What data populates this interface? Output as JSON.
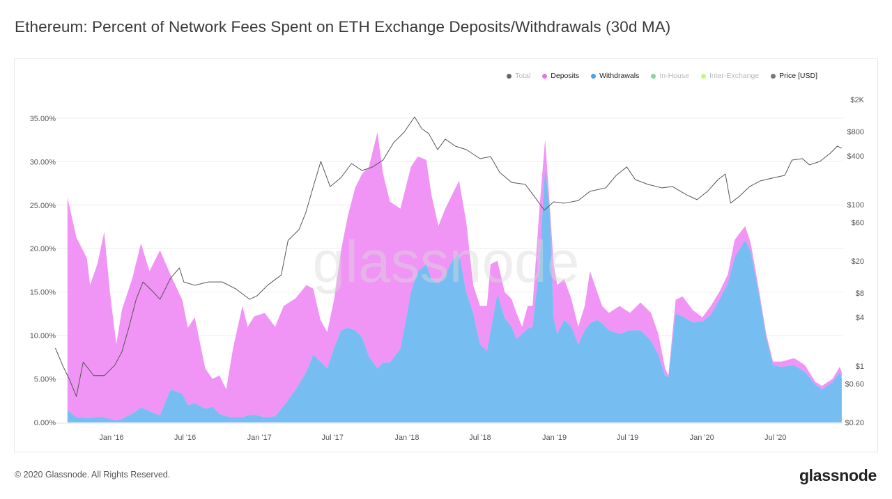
{
  "title": "Ethereum: Percent of Network Fees Spent on ETH Exchange Deposits/Withdrawals (30d MA)",
  "footer": "© 2020 Glassnode. All Rights Reserved.",
  "logo": "glassnode",
  "watermark": "glassnode",
  "legend": [
    {
      "label": "Total",
      "color": "#333333",
      "active": false
    },
    {
      "label": "Deposits",
      "color": "#e673e6",
      "active": true
    },
    {
      "label": "Withdrawals",
      "color": "#4aa3e8",
      "active": true
    },
    {
      "label": "In-House",
      "color": "#5ec97a",
      "active": false
    },
    {
      "label": "Inter-Exchange",
      "color": "#b4ef5a",
      "active": false
    },
    {
      "label": "Price [USD]",
      "color": "#777777",
      "active": true
    }
  ],
  "chart_data": {
    "type": "area",
    "stacked": true,
    "title": "Ethereum: Percent of Network Fees Spent on ETH Exchange Deposits/Withdrawals (30d MA)",
    "x_ticks": [
      "Jan '16",
      "Jul '16",
      "Jan '17",
      "Jul '17",
      "Jan '18",
      "Jul '18",
      "Jan '19",
      "Jul '19",
      "Jan '20",
      "Jul '20"
    ],
    "x_tick_dates": [
      "2016-01-01",
      "2016-07-01",
      "2017-01-01",
      "2017-07-01",
      "2018-01-01",
      "2018-07-01",
      "2019-01-01",
      "2019-07-01",
      "2020-01-01",
      "2020-07-01"
    ],
    "y_left": {
      "ticks": [
        "0.00%",
        "5.00%",
        "10.00%",
        "15.00%",
        "20.00%",
        "25.00%",
        "30.00%",
        "35.00%"
      ],
      "tick_values": [
        0,
        5,
        10,
        15,
        20,
        25,
        30,
        35
      ],
      "range": [
        0,
        35
      ]
    },
    "y_right": {
      "scale": "log",
      "ticks": [
        "$0.20",
        "$0.60",
        "$1",
        "$4",
        "$8",
        "$20",
        "$60",
        "$100",
        "$400",
        "$800",
        "$2K"
      ],
      "tick_values": [
        0.2,
        0.6,
        1,
        4,
        8,
        20,
        60,
        100,
        400,
        800,
        2000
      ],
      "range": [
        0.2,
        2000
      ]
    },
    "grid": true,
    "legend_position": "top-right",
    "colors": {
      "deposits": "#f094f5",
      "withdrawals": "#76bdf2",
      "price": "#555555"
    },
    "dates": [
      "2015-09-14",
      "2015-10-06",
      "2015-11-01",
      "2015-11-09",
      "2015-11-27",
      "2015-12-14",
      "2015-12-28",
      "2016-01-13",
      "2016-01-27",
      "2016-02-21",
      "2016-03-14",
      "2016-04-04",
      "2016-04-30",
      "2016-05-26",
      "2016-06-24",
      "2016-07-08",
      "2016-07-25",
      "2016-08-20",
      "2016-09-07",
      "2016-09-24",
      "2016-10-11",
      "2016-10-28",
      "2016-11-20",
      "2016-12-03",
      "2016-12-19",
      "2017-01-14",
      "2017-02-09",
      "2017-03-02",
      "2017-04-01",
      "2017-04-27",
      "2017-05-14",
      "2017-06-01",
      "2017-06-18",
      "2017-07-05",
      "2017-07-22",
      "2017-08-08",
      "2017-08-26",
      "2017-09-12",
      "2017-09-29",
      "2017-10-20",
      "2017-11-03",
      "2017-11-20",
      "2017-12-16",
      "2018-01-11",
      "2018-01-28",
      "2018-02-18",
      "2018-03-03",
      "2018-03-20",
      "2018-04-06",
      "2018-04-23",
      "2018-05-10",
      "2018-05-28",
      "2018-06-14",
      "2018-07-01",
      "2018-07-18",
      "2018-07-27",
      "2018-08-13",
      "2018-08-31",
      "2018-09-17",
      "2018-09-29",
      "2018-10-13",
      "2018-10-27",
      "2018-11-08",
      "2018-11-25",
      "2018-12-09",
      "2018-12-21",
      "2018-12-30",
      "2019-01-08",
      "2019-01-25",
      "2019-02-12",
      "2019-03-01",
      "2019-03-17",
      "2019-03-30",
      "2019-04-17",
      "2019-04-29",
      "2019-05-16",
      "2019-06-11",
      "2019-07-07",
      "2019-08-02",
      "2019-08-28",
      "2019-09-15",
      "2019-10-02",
      "2019-10-10",
      "2019-10-28",
      "2019-11-14",
      "2019-12-10",
      "2020-01-02",
      "2020-01-23",
      "2020-02-13",
      "2020-03-05",
      "2020-03-22",
      "2020-04-17",
      "2020-05-01",
      "2020-05-22",
      "2020-06-08",
      "2020-06-25",
      "2020-07-16",
      "2020-08-16",
      "2020-09-12",
      "2020-10-07",
      "2020-10-24",
      "2020-11-19",
      "2020-12-07",
      "2020-12-12"
    ],
    "series": [
      {
        "name": "Withdrawals",
        "values": [
          1.4,
          0.6,
          0.5,
          0.5,
          0.6,
          0.6,
          0.4,
          0.2,
          0.4,
          1.0,
          1.7,
          1.3,
          0.8,
          3.8,
          3.3,
          2.0,
          2.2,
          1.6,
          1.8,
          1.0,
          0.7,
          0.6,
          0.6,
          0.8,
          0.9,
          0.6,
          0.7,
          1.9,
          3.8,
          5.8,
          7.8,
          7.0,
          6.2,
          8.6,
          10.6,
          10.9,
          10.6,
          9.8,
          7.6,
          6.2,
          6.9,
          6.9,
          8.5,
          15.0,
          17.4,
          18.2,
          16.5,
          16.0,
          17.0,
          18.6,
          19.4,
          15.0,
          12.6,
          9.0,
          8.2,
          10.5,
          14.8,
          12.0,
          11.0,
          9.6,
          10.2,
          10.8,
          11.0,
          18.2,
          29.4,
          24.0,
          12.0,
          10.2,
          11.8,
          11.0,
          9.0,
          10.6,
          11.4,
          11.8,
          11.4,
          10.6,
          10.2,
          10.6,
          10.6,
          9.4,
          7.8,
          5.4,
          5.2,
          12.5,
          12.2,
          11.5,
          11.6,
          12.4,
          14.1,
          16.0,
          19.0,
          21.0,
          19.6,
          14.6,
          9.8,
          6.6,
          6.4,
          6.6,
          5.8,
          4.4,
          3.8,
          4.6,
          5.8,
          5.0
        ]
      },
      {
        "name": "Deposits",
        "values": [
          24.5,
          20.7,
          18.4,
          15.3,
          17.6,
          21.3,
          14.6,
          8.8,
          12.6,
          15.5,
          18.9,
          16.1,
          19.0,
          13.2,
          10.8,
          8.9,
          9.9,
          4.6,
          3.2,
          4.4,
          3.1,
          8.0,
          12.8,
          10.2,
          11.3,
          12.0,
          10.3,
          11.5,
          10.5,
          10.0,
          7.6,
          4.8,
          4.2,
          5.6,
          9.2,
          12.9,
          16.4,
          18.8,
          21.8,
          27.2,
          21.7,
          18.5,
          16.1,
          14.4,
          13.2,
          12.0,
          9.6,
          6.6,
          7.6,
          7.6,
          8.4,
          8.0,
          3.2,
          4.4,
          5.2,
          7.7,
          3.8,
          3.0,
          3.2,
          3.0,
          0.8,
          2.6,
          2.4,
          6.4,
          3.2,
          0.6,
          6.2,
          5.6,
          4.7,
          3.2,
          2.0,
          2.8,
          6.0,
          3.2,
          2.0,
          2.0,
          3.2,
          2.0,
          3.2,
          3.2,
          2.4,
          0.8,
          0.2,
          1.6,
          2.3,
          1.4,
          0.5,
          1.0,
          0.9,
          1.0,
          2.0,
          1.6,
          1.0,
          0.4,
          0.4,
          0.4,
          0.6,
          0.8,
          0.8,
          0.3,
          0.4,
          0.4,
          0.6,
          0.8
        ]
      }
    ],
    "price": {
      "name": "Price [USD]",
      "dates": [
        "2015-08-15",
        "2015-09-02",
        "2015-09-19",
        "2015-10-06",
        "2015-10-23",
        "2015-11-18",
        "2015-12-14",
        "2016-01-09",
        "2016-01-27",
        "2016-02-13",
        "2016-03-02",
        "2016-03-19",
        "2016-04-14",
        "2016-04-30",
        "2016-05-26",
        "2016-06-17",
        "2016-06-28",
        "2016-07-25",
        "2016-08-28",
        "2016-10-01",
        "2016-11-04",
        "2016-12-08",
        "2016-12-26",
        "2017-01-21",
        "2017-02-24",
        "2017-03-13",
        "2017-04-09",
        "2017-04-26",
        "2017-05-16",
        "2017-06-02",
        "2017-06-25",
        "2017-07-22",
        "2017-08-17",
        "2017-09-12",
        "2017-10-08",
        "2017-11-03",
        "2017-11-29",
        "2017-12-25",
        "2018-01-20",
        "2018-02-07",
        "2018-02-24",
        "2018-03-18",
        "2018-04-06",
        "2018-05-01",
        "2018-05-28",
        "2018-07-01",
        "2018-07-27",
        "2018-08-19",
        "2018-09-17",
        "2018-10-21",
        "2018-11-16",
        "2018-12-07",
        "2018-12-30",
        "2019-01-25",
        "2019-03-01",
        "2019-03-30",
        "2019-05-08",
        "2019-06-03",
        "2019-06-29",
        "2019-07-20",
        "2019-08-20",
        "2019-09-24",
        "2019-10-20",
        "2019-11-24",
        "2019-12-20",
        "2020-01-15",
        "2020-02-10",
        "2020-02-28",
        "2020-03-12",
        "2020-04-03",
        "2020-04-28",
        "2020-05-24",
        "2020-06-29",
        "2020-07-24",
        "2020-08-11",
        "2020-09-06",
        "2020-09-23",
        "2020-10-19",
        "2020-11-14",
        "2020-12-01",
        "2020-12-12"
      ],
      "values": [
        1.67,
        1.02,
        0.68,
        0.42,
        1.12,
        0.76,
        0.76,
        1.02,
        1.51,
        3.0,
        6.7,
        11.0,
        8.2,
        6.7,
        12.2,
        16.4,
        11.0,
        10.0,
        11.0,
        11.0,
        9.0,
        6.7,
        7.4,
        10.0,
        13.4,
        36,
        49,
        80,
        178,
        342,
        167,
        216,
        322,
        264,
        292,
        356,
        584,
        787,
        1217,
        869,
        757,
        479,
        646,
        529,
        479,
        370,
        393,
        249,
        188,
        178,
        119,
        85,
        108,
        104,
        112,
        146,
        161,
        230,
        292,
        204,
        178,
        161,
        167,
        132,
        115,
        146,
        204,
        239,
        104,
        127,
        167,
        196,
        216,
        230,
        356,
        370,
        310,
        342,
        434,
        529,
        499
      ]
    }
  }
}
